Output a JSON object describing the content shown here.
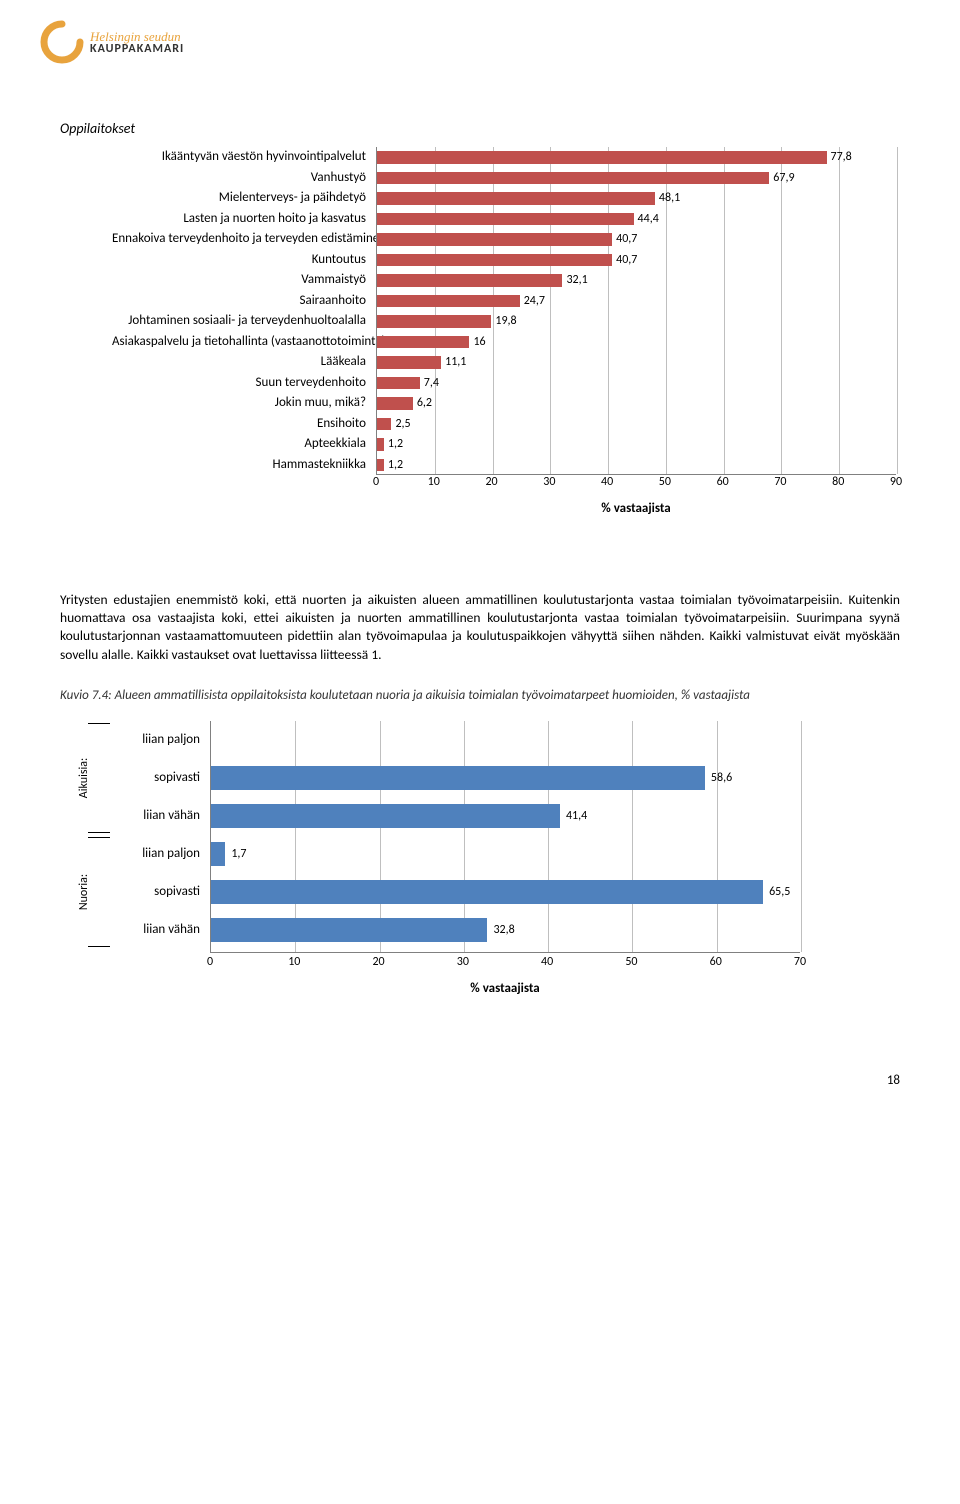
{
  "logo": {
    "line1": "Helsingin seudun",
    "line2": "KAUPPAKAMARI"
  },
  "section_title": "Oppilaitokset",
  "chart1": {
    "type": "bar_horizontal",
    "categories": [
      "Ikääntyvän väestön hyvinvointipalvelut",
      "Vanhustyö",
      "Mielenterveys- ja päihdetyö",
      "Lasten ja nuorten hoito ja kasvatus",
      "Ennakoiva terveydenhoito ja terveyden edistäminen",
      "Kuntoutus",
      "Vammaistyö",
      "Sairaanhoito",
      "Johtaminen sosiaali- ja terveydenhuoltoalalla",
      "Asiakaspalvelu ja tietohallinta (vastaanottotoiminta)",
      "Lääkeala",
      "Suun terveydenhoito",
      "Jokin muu, mikä?",
      "Ensihoito",
      "Apteekkiala",
      "Hammastekniikka"
    ],
    "values": [
      77.8,
      67.9,
      48.1,
      44.4,
      40.7,
      40.7,
      32.1,
      24.7,
      19.8,
      16,
      11.1,
      7.4,
      6.2,
      2.5,
      1.2,
      1.2
    ],
    "value_labels": [
      "77,8",
      "67,9",
      "48,1",
      "44,4",
      "40,7",
      "40,7",
      "32,1",
      "24,7",
      "19,8",
      "16",
      "11,1",
      "7,4",
      "6,2",
      "2,5",
      "1,2",
      "1,2"
    ],
    "bar_color": "#c0504d",
    "grid_color": "#bfbfbf",
    "axis_color": "#808080",
    "xlim_max": 90,
    "xtick_step": 10,
    "xticks": [
      0,
      10,
      20,
      30,
      40,
      50,
      60,
      70,
      80,
      90
    ],
    "xlabel": "% vastaajista",
    "label_fontsize": 13,
    "value_fontsize": 12
  },
  "paragraph": "Yritysten edustajien enemmistö koki, että nuorten ja aikuisten alueen ammatillinen koulutustarjonta vastaa toimialan työvoimatarpeisiin. Kuitenkin huomattava osa vastaajista koki, ettei aikuisten ja nuorten ammatillinen koulutustarjonta vastaa toimialan työvoimatarpeisiin. Suurimpana syynä koulutustarjonnan vastaamattomuuteen pidettiin alan työvoimapulaa ja koulutuspaikkojen vähyyttä siihen nähden. Kaikki valmistuvat eivät myöskään sovellu alalle. Kaikki vastaukset ovat luettavissa liitteessä 1.",
  "caption": "Kuvio 7.4: Alueen ammatillisista oppilaitoksista koulutetaan nuoria ja aikuisia toimialan työvoimatarpeet huomioiden, % vastaajista",
  "chart2": {
    "type": "bar_horizontal",
    "groups": [
      {
        "label": "Aikuisia:",
        "rows": [
          "liian paljon",
          "sopivasti",
          "liian vähän"
        ]
      },
      {
        "label": "Nuoria:",
        "rows": [
          "liian paljon",
          "sopivasti",
          "liian vähän"
        ]
      }
    ],
    "categories": [
      "liian paljon",
      "sopivasti",
      "liian vähän",
      "liian paljon",
      "sopivasti",
      "liian vähän"
    ],
    "values": [
      0,
      58.6,
      41.4,
      1.7,
      65.5,
      32.8
    ],
    "value_labels": [
      "",
      "58,6",
      "41,4",
      "1,7",
      "65,5",
      "32,8"
    ],
    "bar_color": "#4f81bd",
    "grid_color": "#bfbfbf",
    "axis_color": "#808080",
    "xlim_max": 70,
    "xtick_step": 10,
    "xticks": [
      0,
      10,
      20,
      30,
      40,
      50,
      60,
      70
    ],
    "xlabel": "% vastaajista",
    "label_fontsize": 13,
    "value_fontsize": 12
  },
  "pagenum": "18"
}
